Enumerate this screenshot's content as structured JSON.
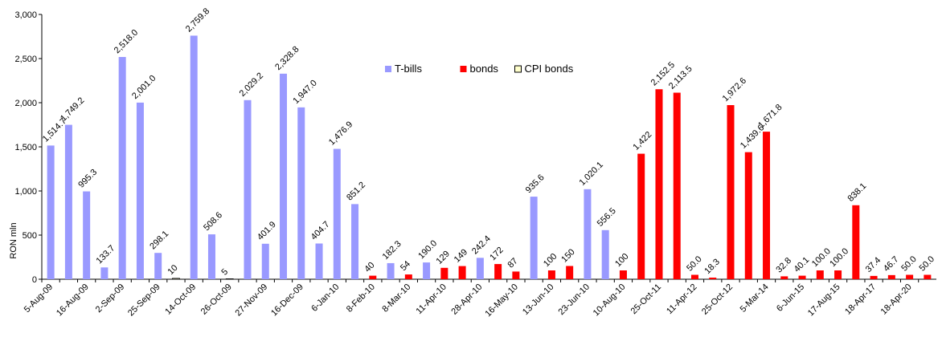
{
  "chart_data": {
    "type": "bar",
    "y_label": "RON mln",
    "ylim": [
      0,
      3000
    ],
    "yticks": [
      0,
      500,
      {
        "value": 1000,
        "label": "1,000"
      },
      {
        "value": 1500,
        "label": "1,500"
      },
      {
        "value": 2000,
        "label": "2,000"
      },
      {
        "value": 2500,
        "label": "2,500"
      },
      {
        "value": 3000,
        "label": "3,000"
      }
    ],
    "categories": [
      "5-Aug-09",
      null,
      "16-Aug-09",
      null,
      "2-Sep-09",
      null,
      "25-Sep-09",
      null,
      "14-Oct-09",
      null,
      "26-Oct-09",
      null,
      "27-Nov-09",
      null,
      "16-Dec-09",
      null,
      "6-Jan-10",
      null,
      "8-Feb-10",
      null,
      "8-Mar-10",
      null,
      "11-Apr-10",
      null,
      "28-Apr-10",
      null,
      "16-May-10",
      null,
      "13-Jun-10",
      null,
      "23-Jun-10",
      null,
      "10-Aug-10",
      null,
      "25-Oct-11",
      null,
      "11-Apr-12",
      null,
      "25-Oct-12",
      null,
      "5-Mar-14",
      null,
      "6-Jun-15",
      null,
      "17-Aug-15",
      null,
      "18-Apr-17",
      null,
      "18-Apr-20",
      null
    ],
    "series": [
      {
        "name": "T-bills",
        "color": "#9999ff",
        "values": [
          1514.7,
          1749.2,
          995.3,
          133.7,
          2518,
          2001,
          298.1,
          null,
          2759.8,
          508.6,
          null,
          2029.2,
          401.9,
          2328.8,
          1947,
          404.7,
          1476.9,
          851.2,
          null,
          182.3,
          null,
          190,
          null,
          null,
          242.4,
          null,
          null,
          935.6,
          null,
          null,
          1020.1,
          556.5,
          null,
          null,
          null,
          null,
          null,
          null,
          null,
          null,
          null,
          null,
          null,
          null,
          null,
          null,
          null,
          null,
          null,
          null
        ],
        "value_labels": [
          "1,514.7",
          "1,749.2",
          "995.3",
          "133.7",
          "2,518.0",
          "2,001.0",
          "298.1",
          null,
          "2,759.8",
          "508.6",
          null,
          "2,029.2",
          "401.9",
          "2,328.8",
          "1,947.0",
          "404.7",
          "1,476.9",
          "851.2",
          null,
          "182.3",
          null,
          "190.0",
          null,
          null,
          "242.4",
          null,
          null,
          "935.6",
          null,
          null,
          "1,020.1",
          "556.5",
          null,
          null,
          null,
          null,
          null,
          null,
          null,
          null,
          null,
          null,
          null,
          null,
          null,
          null,
          null,
          null,
          null,
          null
        ]
      },
      {
        "name": "bonds",
        "color": "#ff0000",
        "values": [
          null,
          null,
          null,
          null,
          null,
          null,
          null,
          null,
          null,
          null,
          null,
          null,
          null,
          null,
          null,
          null,
          null,
          null,
          40,
          null,
          54,
          null,
          129,
          149,
          null,
          172,
          87,
          null,
          100,
          150,
          null,
          null,
          100,
          1422,
          2152.5,
          2113.5,
          50,
          18.3,
          1972.6,
          1439.6,
          1671.8,
          32.8,
          40.1,
          100,
          100,
          838.1,
          37.4,
          46.7,
          50,
          50
        ],
        "value_labels": [
          null,
          null,
          null,
          null,
          null,
          null,
          null,
          null,
          null,
          null,
          null,
          null,
          null,
          null,
          null,
          null,
          null,
          null,
          "40",
          null,
          "54",
          null,
          "129",
          "149",
          null,
          "172",
          "87",
          null,
          "100",
          "150",
          null,
          null,
          "100",
          "1,422",
          "2,152.5",
          "2,113.5",
          "50.0",
          "18.3",
          "1,972.6",
          "1,439.6",
          "1,671.8",
          "32.8",
          "40.1",
          "100.0",
          "100.0",
          "838.1",
          "37.4",
          "46.7",
          "50.0",
          "50.0"
        ]
      },
      {
        "name": "CPI bonds",
        "color": "#ffffcc",
        "values": [
          null,
          null,
          null,
          null,
          null,
          null,
          null,
          10,
          null,
          null,
          5,
          null,
          null,
          null,
          null,
          null,
          null,
          null,
          null,
          null,
          null,
          null,
          null,
          null,
          null,
          null,
          null,
          null,
          null,
          null,
          null,
          null,
          null,
          null,
          null,
          null,
          null,
          null,
          null,
          null,
          null,
          null,
          null,
          null,
          null,
          null,
          null,
          null,
          null,
          null
        ],
        "value_labels": [
          null,
          null,
          null,
          null,
          null,
          null,
          null,
          "10",
          null,
          null,
          "5",
          null,
          null,
          null,
          null,
          null,
          null,
          null,
          null,
          null,
          null,
          null,
          null,
          null,
          null,
          null,
          null,
          null,
          null,
          null,
          null,
          null,
          null,
          null,
          null,
          null,
          null,
          null,
          null,
          null,
          null,
          null,
          null,
          null,
          null,
          null,
          null,
          null,
          null,
          null
        ]
      }
    ]
  }
}
